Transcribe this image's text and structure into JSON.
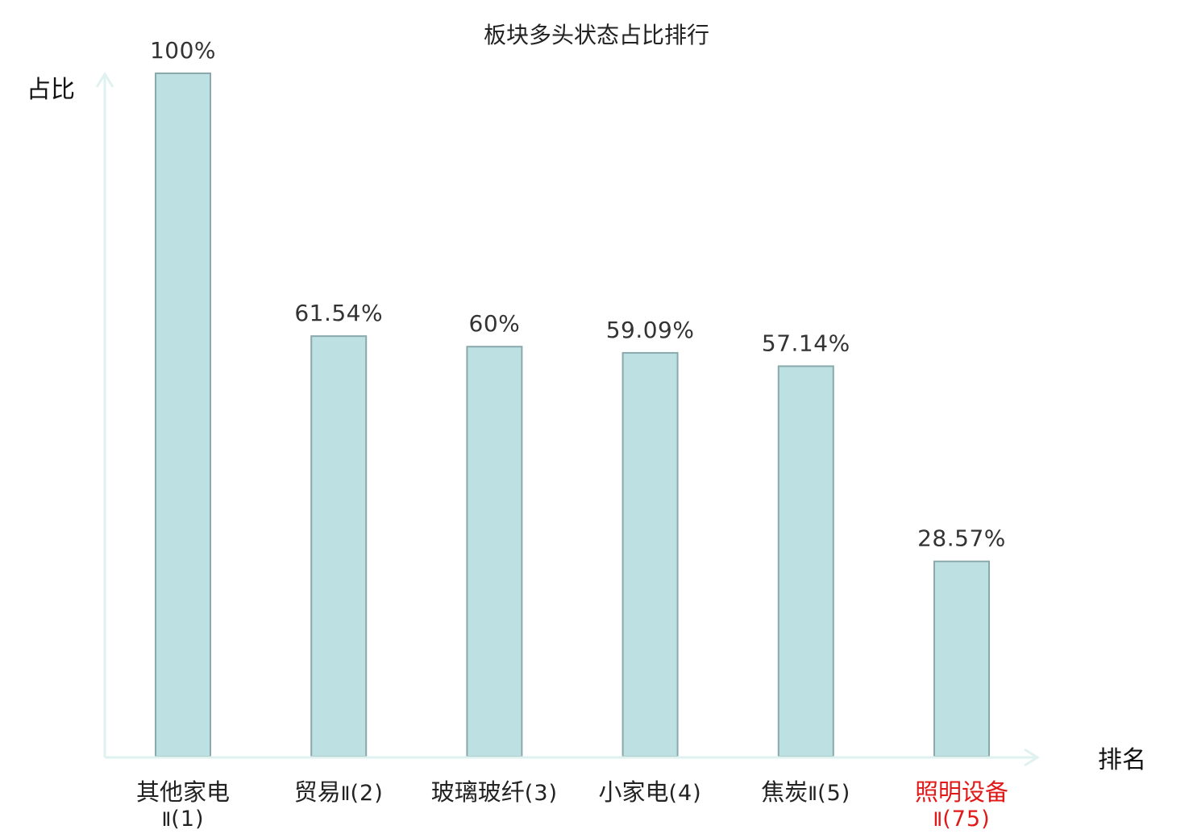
{
  "colors": {
    "bar_fill": "#bde0e3",
    "bar_stroke": "#8aa9ad",
    "axis": "#dff2f0",
    "highlight": "#e01818",
    "text": "#222222"
  },
  "chart_data": {
    "type": "bar",
    "title": "板块多头状态占比排行",
    "xlabel": "排名",
    "ylabel": "占比",
    "ylim": [
      0,
      100
    ],
    "grid": false,
    "categories": [
      {
        "name": "其他家电",
        "sub": "Ⅱ",
        "rank": "(1)",
        "value": 100,
        "label": "100%",
        "highlight": false
      },
      {
        "name": "贸易",
        "sub": "Ⅱ",
        "rank": "(2)",
        "value": 61.54,
        "label": "61.54%",
        "highlight": false
      },
      {
        "name": "玻璃玻纤",
        "sub": "",
        "rank": "(3)",
        "value": 60,
        "label": "60%",
        "highlight": false
      },
      {
        "name": "小家电",
        "sub": "",
        "rank": "(4)",
        "value": 59.09,
        "label": "59.09%",
        "highlight": false
      },
      {
        "name": "焦炭",
        "sub": "Ⅱ",
        "rank": "(5)",
        "value": 57.14,
        "label": "57.14%",
        "highlight": false
      },
      {
        "name": "照明设备",
        "sub": "Ⅱ",
        "rank": "(75)",
        "value": 28.57,
        "label": "28.57%",
        "highlight": true
      }
    ]
  }
}
